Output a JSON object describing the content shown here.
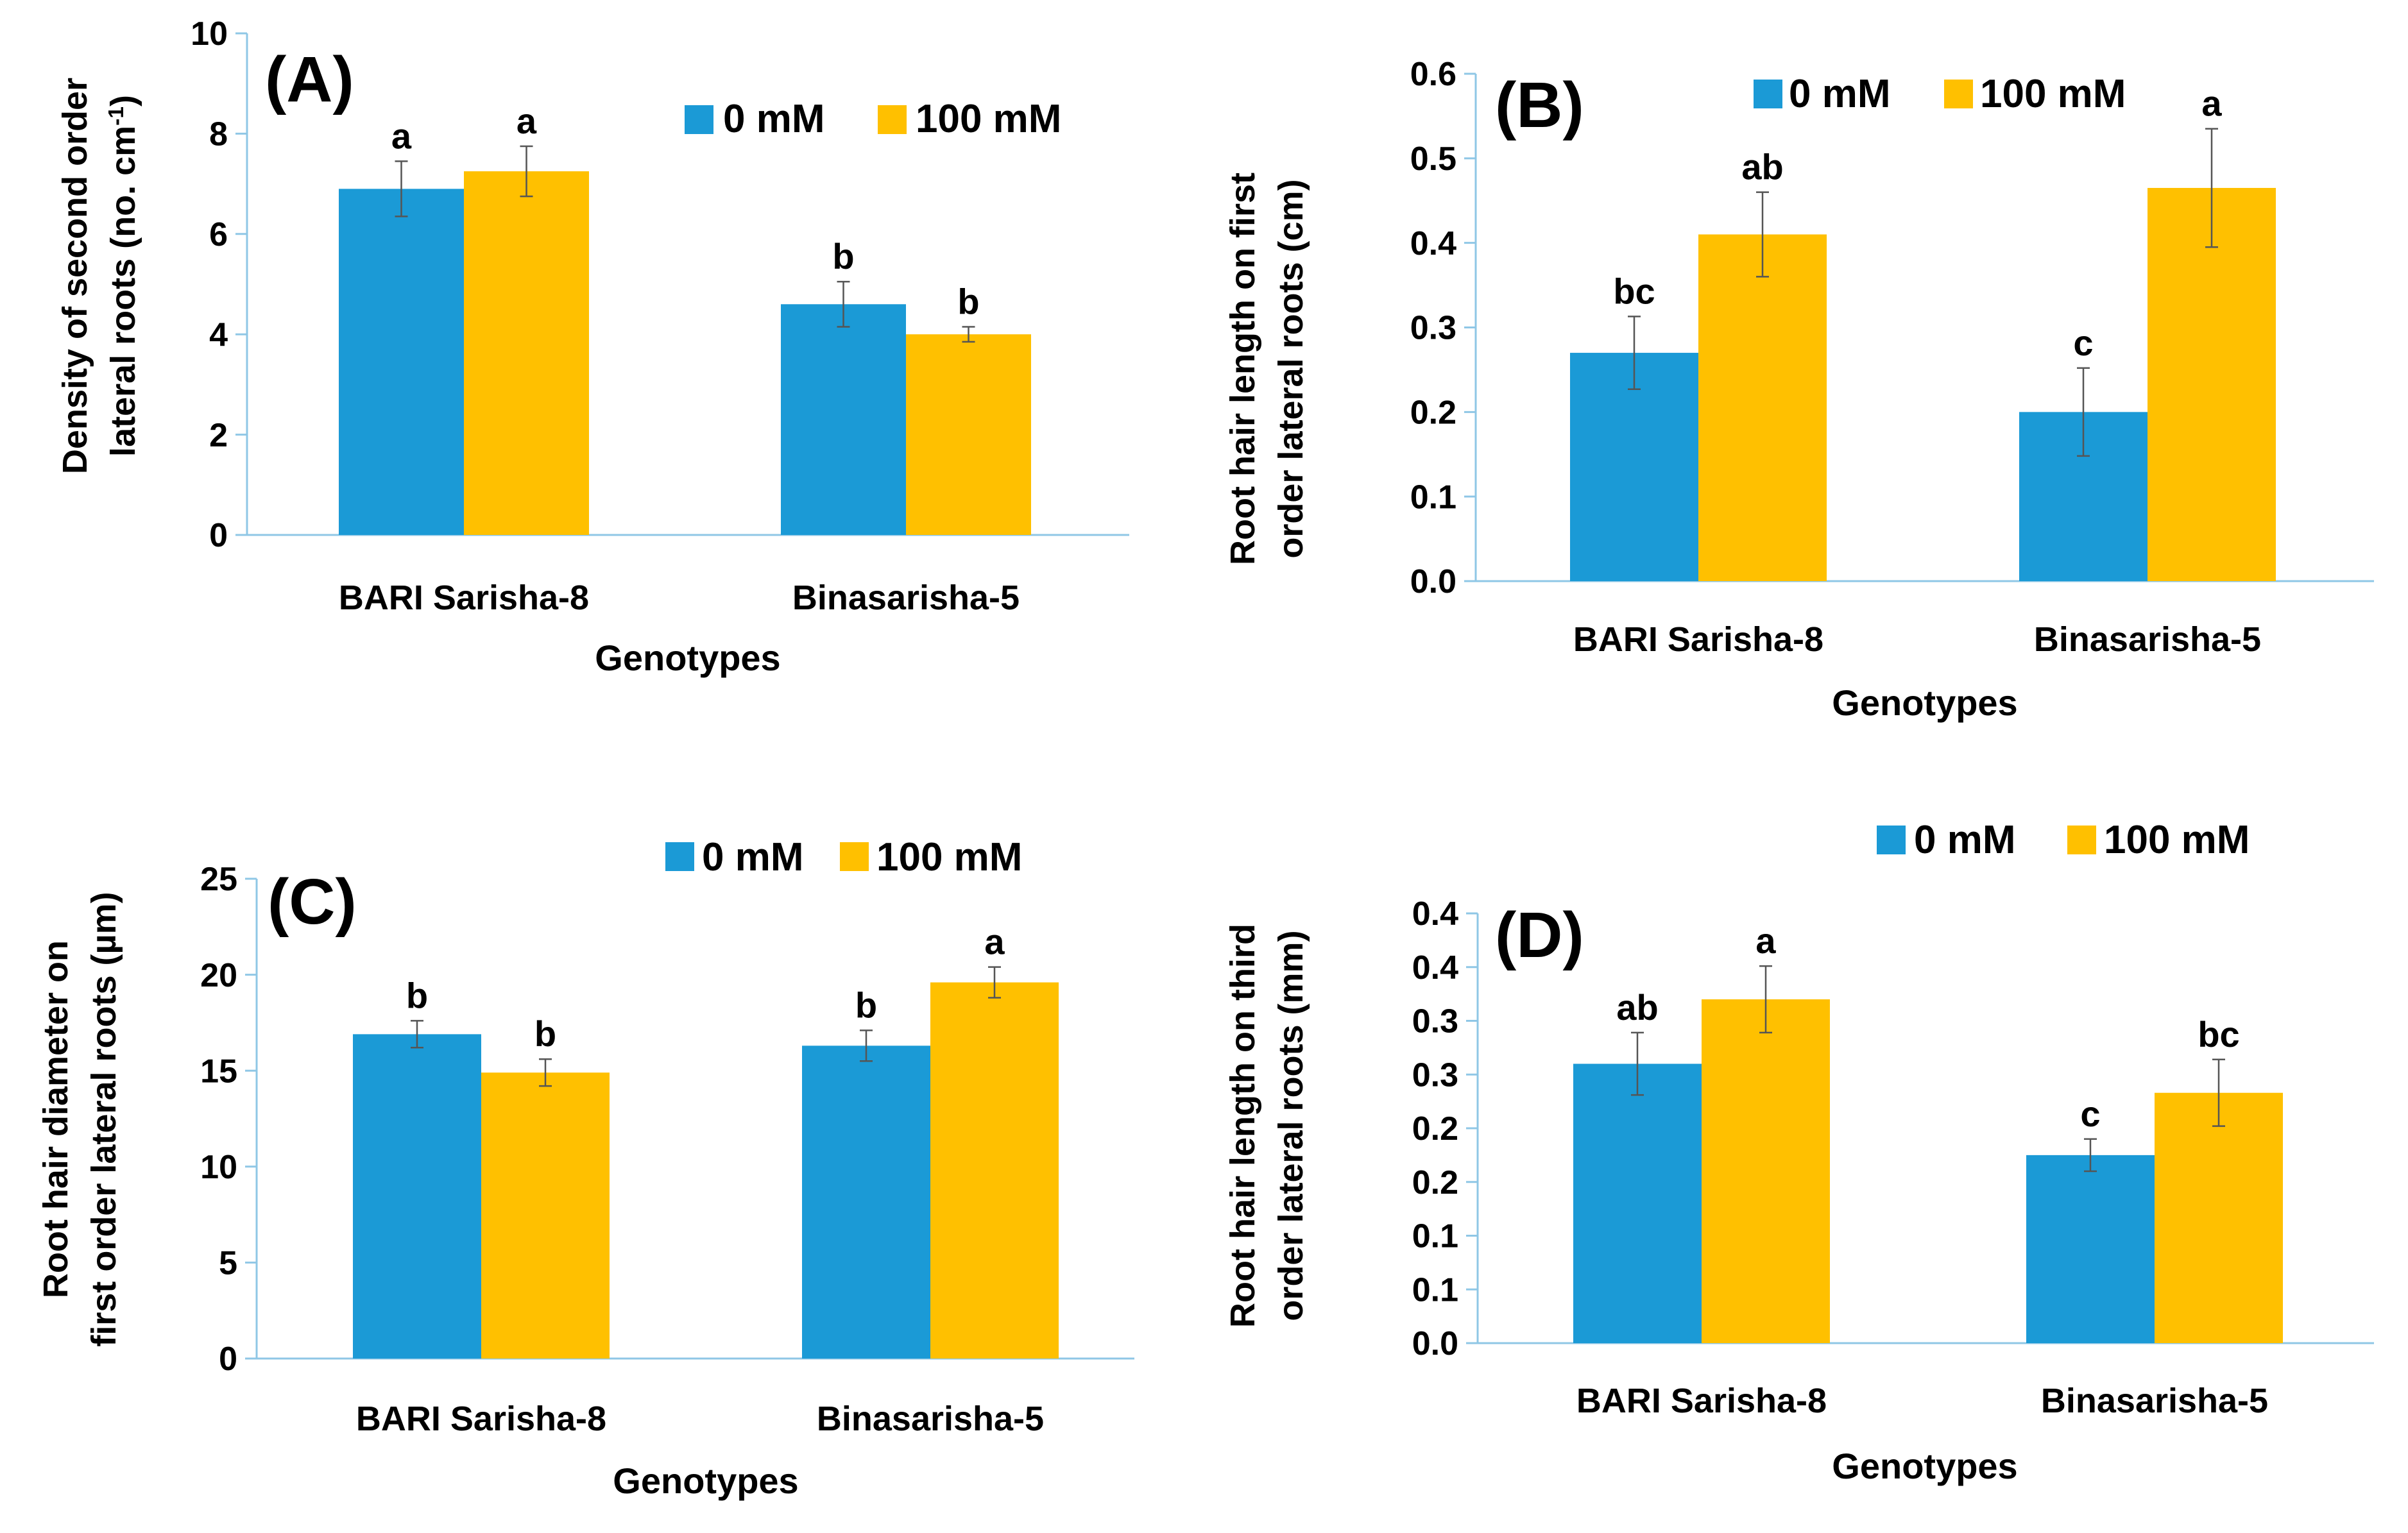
{
  "chart_data": [
    {
      "type": "bar",
      "panel_label": "(A)",
      "categories": [
        "BARI Sarisha-8",
        "Binasarisha-5"
      ],
      "series": [
        {
          "name": "0 mM",
          "color": "#1b9ad6",
          "values": [
            6.9,
            4.6
          ],
          "errors": [
            0.55,
            0.45
          ],
          "letters": [
            "a",
            "b"
          ]
        },
        {
          "name": "100 mM",
          "color": "#ffc000",
          "values": [
            7.25,
            4.0
          ],
          "errors": [
            0.5,
            0.15
          ],
          "letters": [
            "a",
            "b"
          ]
        }
      ],
      "xlabel": "Genotypes",
      "ylabel_lines": [
        "Density of second order",
        "lateral roots (no. cm",
        "-1",
        ")"
      ],
      "ylim": [
        0,
        10
      ],
      "yticks": [
        "0",
        "2",
        "4",
        "6",
        "8",
        "10"
      ],
      "legend_position": "top-right",
      "grid": false
    },
    {
      "type": "bar",
      "panel_label": "(B)",
      "categories": [
        "BARI Sarisha-8",
        "Binasarisha-5"
      ],
      "series": [
        {
          "name": "0 mM",
          "color": "#1b9ad6",
          "values": [
            0.27,
            0.2
          ],
          "errors": [
            0.043,
            0.052
          ],
          "letters": [
            "bc",
            "c"
          ]
        },
        {
          "name": "100 mM",
          "color": "#ffc000",
          "values": [
            0.41,
            0.465
          ],
          "errors": [
            0.05,
            0.07
          ],
          "letters": [
            "ab",
            "a"
          ]
        }
      ],
      "xlabel": "Genotypes",
      "ylabel_lines": [
        "Root hair length on first",
        "order lateral roots (cm)"
      ],
      "ylim": [
        0,
        0.6
      ],
      "yticks": [
        "0.0",
        "0.1",
        "0.2",
        "0.3",
        "0.4",
        "0.5",
        "0.6"
      ],
      "legend_position": "top",
      "grid": false
    },
    {
      "type": "bar",
      "panel_label": "(C)",
      "categories": [
        "BARI Sarisha-8",
        "Binasarisha-5"
      ],
      "series": [
        {
          "name": "0 mM",
          "color": "#1b9ad6",
          "values": [
            16.9,
            16.3
          ],
          "errors": [
            0.7,
            0.8
          ],
          "letters": [
            "b",
            "b"
          ]
        },
        {
          "name": "100 mM",
          "color": "#ffc000",
          "values": [
            14.9,
            19.6
          ],
          "errors": [
            0.7,
            0.8
          ],
          "letters": [
            "b",
            "a"
          ]
        }
      ],
      "xlabel": "Genotypes",
      "ylabel_lines": [
        "Root hair diameter on",
        "first order lateral roots (µm)"
      ],
      "ylim": [
        0,
        25
      ],
      "yticks": [
        "0",
        "5",
        "10",
        "15",
        "20",
        "25"
      ],
      "legend_position": "top",
      "grid": false
    },
    {
      "type": "bar",
      "panel_label": "(D)",
      "categories": [
        "BARI Sarisha-8",
        "Binasarisha-5"
      ],
      "series": [
        {
          "name": "0 mM",
          "color": "#1b9ad6",
          "values": [
            0.26,
            0.175
          ],
          "errors": [
            0.029,
            0.015
          ],
          "letters": [
            "ab",
            "c"
          ]
        },
        {
          "name": "100 mM",
          "color": "#ffc000",
          "values": [
            0.32,
            0.233
          ],
          "errors": [
            0.031,
            0.031
          ],
          "letters": [
            "a",
            "bc"
          ]
        }
      ],
      "xlabel": "Genotypes",
      "ylabel_lines": [
        "Root hair length on third",
        "order lateral roots (mm)"
      ],
      "ylim": [
        0,
        0.4
      ],
      "yticks": [
        "0.0",
        "0.1",
        "0.1",
        "0.2",
        "0.2",
        "0.3",
        "0.3",
        "0.4",
        "0.4"
      ],
      "legend_position": "top",
      "grid": false
    }
  ]
}
